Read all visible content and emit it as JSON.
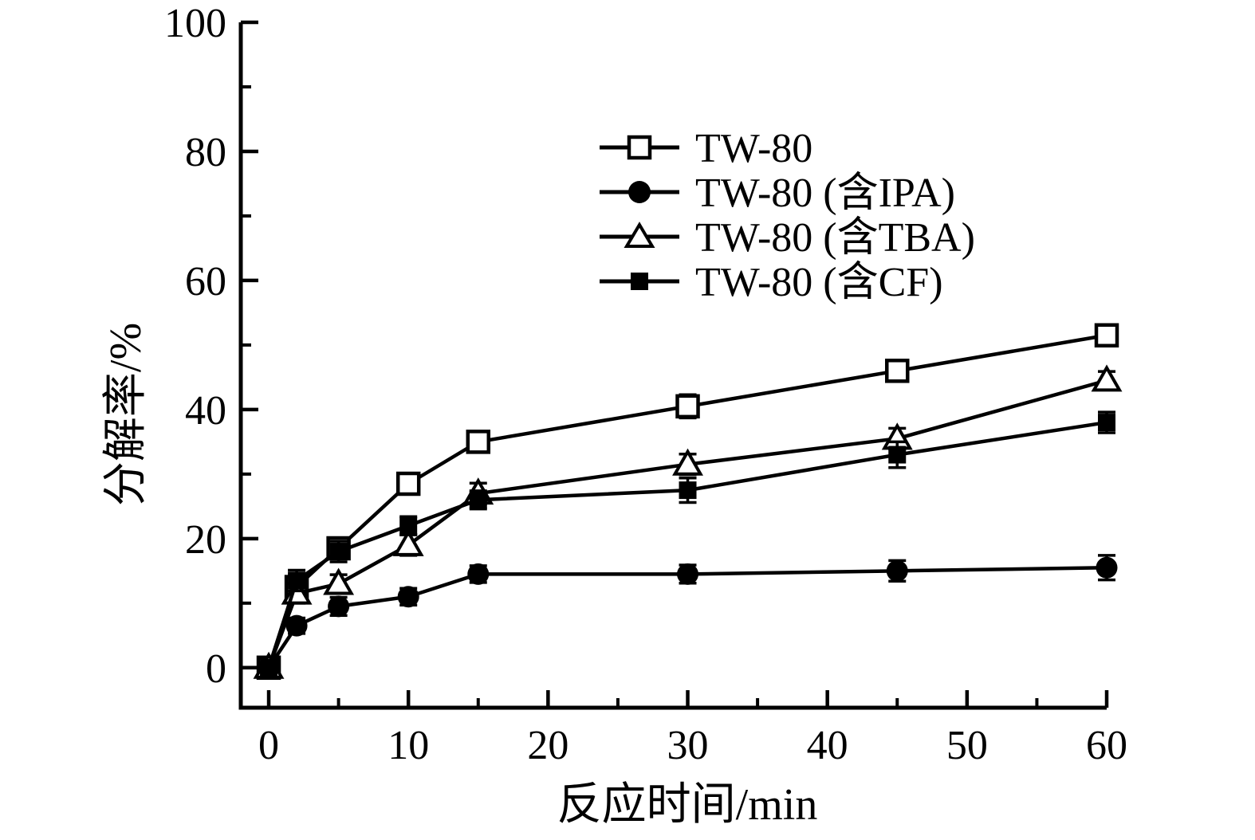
{
  "figure": {
    "background_color": "#ffffff",
    "foreground_color": "#000000"
  },
  "chart_data": {
    "type": "line",
    "title": "",
    "xlabel": "反应时间/min",
    "ylabel": "分解率/%",
    "xlim": [
      -2,
      60
    ],
    "ylim": [
      -6.2,
      100
    ],
    "xticks_major": [
      0,
      10,
      20,
      30,
      40,
      50,
      60
    ],
    "xticks_minor": [
      5,
      15,
      25,
      35,
      45,
      55
    ],
    "yticks_major": [
      0,
      20,
      40,
      60,
      80,
      100
    ],
    "yticks_minor": [
      10,
      30,
      50,
      70,
      90
    ],
    "grid": false,
    "error_bars": true,
    "legend_position": "upper-right-inside",
    "line_color": "#000000",
    "x": [
      0,
      2,
      5,
      10,
      15,
      30,
      45,
      60
    ],
    "series": [
      {
        "name": "TW-80",
        "marker": "open-square",
        "values": [
          0,
          12.5,
          18.5,
          28.5,
          35,
          40.5,
          46,
          51.5
        ],
        "errors": [
          0.7,
          1.2,
          1.4,
          1.5,
          1.4,
          1.8,
          1.4,
          1.4
        ]
      },
      {
        "name": "TW-80 (含IPA)",
        "marker": "filled-circle",
        "values": [
          0,
          6.5,
          9.5,
          11,
          14.5,
          14.5,
          15,
          15.5
        ],
        "errors": [
          0.7,
          1.2,
          1.4,
          1.3,
          1.3,
          1.4,
          1.6,
          1.9
        ]
      },
      {
        "name": "TW-80 (含TBA)",
        "marker": "open-triangle",
        "values": [
          0,
          11.5,
          13,
          19,
          27,
          31.5,
          35.5,
          44.5
        ],
        "errors": [
          0.7,
          1.5,
          1.4,
          1.6,
          1.6,
          1.6,
          1.6,
          1.4
        ]
      },
      {
        "name": "TW-80 (含CF)",
        "marker": "filled-square",
        "values": [
          0,
          13.5,
          18,
          22,
          26,
          27.5,
          33,
          38
        ],
        "errors": [
          0.7,
          1.6,
          1.6,
          1.4,
          1.4,
          1.9,
          2.0,
          1.6
        ]
      }
    ]
  }
}
